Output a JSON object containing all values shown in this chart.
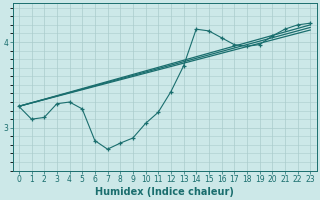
{
  "bg_color": "#cce8e8",
  "line_color": "#1a6e6e",
  "grid_color": "#aacccc",
  "xlabel": "Humidex (Indice chaleur)",
  "xlabel_fontsize": 7,
  "tick_fontsize": 5.5,
  "xlim": [
    -0.5,
    23.5
  ],
  "ylim": [
    2.5,
    4.45
  ],
  "ytick_positions": [
    3,
    4
  ],
  "ytick_labels": [
    "3",
    "4"
  ],
  "series": [
    {
      "x": [
        0,
        1,
        2,
        3,
        4,
        5,
        6,
        7,
        8,
        9,
        10,
        11,
        12,
        13,
        14,
        15,
        16,
        17,
        18,
        19,
        20,
        21,
        22,
        23
      ],
      "y": [
        3.25,
        3.1,
        3.12,
        3.28,
        3.3,
        3.22,
        2.85,
        2.75,
        2.82,
        2.88,
        3.05,
        3.18,
        3.42,
        3.72,
        4.15,
        4.13,
        4.05,
        3.97,
        3.95,
        3.97,
        4.07,
        4.15,
        4.2,
        4.22
      ],
      "marker": "+"
    },
    {
      "x": [
        0,
        23
      ],
      "y": [
        3.25,
        4.2
      ],
      "marker": null
    },
    {
      "x": [
        0,
        23
      ],
      "y": [
        3.25,
        4.17
      ],
      "marker": null
    },
    {
      "x": [
        0,
        23
      ],
      "y": [
        3.25,
        4.14
      ],
      "marker": null
    }
  ]
}
